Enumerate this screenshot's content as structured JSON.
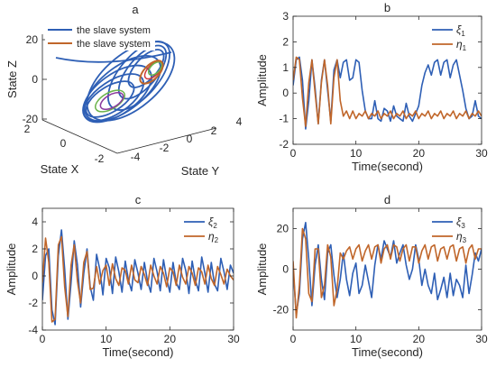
{
  "figure": {
    "panels": [
      "a",
      "b",
      "c",
      "d"
    ]
  },
  "chart_data": [
    {
      "panel": "a",
      "type": "line",
      "projection": "3d",
      "title": "a",
      "xlabel": "State X",
      "ylabel": "State Y",
      "zlabel": "State Z",
      "xticks": [
        "-2",
        "0",
        "2"
      ],
      "yticks": [
        "-4",
        "-2",
        "0",
        "2",
        "4"
      ],
      "zticks": [
        "-20",
        "0",
        "20"
      ],
      "xlim": [
        -2,
        2
      ],
      "ylim": [
        -4,
        4
      ],
      "zlim": [
        -20,
        20
      ],
      "legend": [
        "the slave system",
        "the slave system"
      ],
      "legend_position": "top-left",
      "series": [
        {
          "name": "the slave system",
          "color": "#2e5fb5",
          "trajectory": "double-scroll attractor"
        },
        {
          "name": "the slave system",
          "color": "#c0662a",
          "trajectory": "small loop"
        },
        {
          "color": "#6bb34a"
        },
        {
          "color": "#8b3a9e"
        },
        {
          "color": "#d03a3a"
        }
      ]
    },
    {
      "panel": "b",
      "type": "line",
      "title": "b",
      "xlabel": "Time(second)",
      "ylabel": "Amplitude",
      "xlim": [
        0,
        30
      ],
      "ylim": [
        -2,
        3
      ],
      "xticks": [
        0,
        10,
        20,
        30
      ],
      "yticks": [
        -2,
        -1,
        0,
        1,
        2,
        3
      ],
      "legend_position": "top-right",
      "series": [
        {
          "name": "ξ",
          "sub": "1",
          "color": "#2e5fb5",
          "x": [
            0,
            0.5,
            1,
            1.5,
            2,
            2.5,
            3,
            3.5,
            4,
            4.5,
            5,
            5.5,
            6,
            6.5,
            7,
            7.5,
            8,
            8.5,
            9,
            9.5,
            10,
            10.5,
            11,
            11.5,
            12,
            12.5,
            13,
            13.5,
            14,
            14.5,
            15,
            15.5,
            16,
            16.5,
            17,
            17.5,
            18,
            18.5,
            19,
            19.5,
            20,
            20.5,
            21,
            21.5,
            22,
            22.5,
            23,
            23.5,
            24,
            24.5,
            25,
            25.5,
            26,
            26.5,
            27,
            27.5,
            28,
            28.5,
            29,
            29.5,
            30
          ],
          "y": [
            0.3,
            1.3,
            1.4,
            0.5,
            -1.4,
            -0.3,
            1.3,
            0.2,
            -1.2,
            0.5,
            1.3,
            0.1,
            -1.1,
            0.9,
            1.3,
            0.6,
            1.2,
            1.3,
            0.5,
            0.6,
            1.3,
            1.2,
            0.1,
            -0.7,
            -1.0,
            -1.0,
            -0.3,
            -1.0,
            -1.1,
            -0.6,
            -0.7,
            -1.1,
            -0.5,
            -0.9,
            -1.0,
            -1.1,
            -0.4,
            -0.9,
            -1.1,
            -0.8,
            -0.5,
            0.3,
            0.8,
            1.1,
            0.7,
            1.2,
            1.3,
            0.7,
            1.2,
            1.3,
            0.6,
            1.1,
            1.3,
            0.7,
            0.1,
            -0.6,
            -1.0,
            -0.9,
            -0.3,
            -0.9,
            -1.0
          ]
        },
        {
          "name": "η",
          "sub": "1",
          "color": "#c0662a",
          "x": [
            0,
            0.5,
            1,
            1.5,
            2,
            2.5,
            3,
            3.5,
            4,
            4.5,
            5,
            5.5,
            6,
            6.5,
            7,
            7.5,
            8,
            8.5,
            9,
            9.5,
            10,
            10.5,
            11,
            11.5,
            12,
            12.5,
            13,
            13.5,
            14,
            14.5,
            15,
            15.5,
            16,
            16.5,
            17,
            17.5,
            18,
            18.5,
            19,
            19.5,
            20,
            20.5,
            21,
            21.5,
            22,
            22.5,
            23,
            23.5,
            24,
            24.5,
            25,
            25.5,
            26,
            26.5,
            27,
            27.5,
            28,
            28.5,
            29,
            29.5,
            30
          ],
          "y": [
            0.5,
            1.4,
            1.3,
            -0.2,
            -1.3,
            0.4,
            1.3,
            0.0,
            -1.2,
            0.4,
            1.3,
            0.3,
            -1.2,
            0.6,
            1.3,
            -0.3,
            -0.9,
            -0.7,
            -1.0,
            -0.7,
            -1.0,
            -0.8,
            -0.9,
            -0.7,
            -1.0,
            -0.8,
            -0.9,
            -0.7,
            -1.0,
            -0.8,
            -0.9,
            -0.7,
            -1.0,
            -0.8,
            -0.9,
            -0.7,
            -1.0,
            -0.8,
            -0.9,
            -0.7,
            -1.0,
            -0.8,
            -0.9,
            -0.7,
            -1.0,
            -0.8,
            -0.9,
            -0.7,
            -1.0,
            -0.8,
            -0.9,
            -0.7,
            -1.0,
            -0.8,
            -0.9,
            -0.7,
            -1.0,
            -0.8,
            -0.9,
            -0.7,
            -0.9
          ]
        }
      ]
    },
    {
      "panel": "c",
      "type": "line",
      "title": "c",
      "xlabel": "Time(second)",
      "ylabel": "Amplitude",
      "xlim": [
        0,
        30
      ],
      "ylim": [
        -4,
        5
      ],
      "xticks": [
        0,
        10,
        20,
        30
      ],
      "yticks": [
        -4,
        -2,
        0,
        2,
        4
      ],
      "legend_position": "top-right",
      "series": [
        {
          "name": "ξ",
          "sub": "2",
          "color": "#2e5fb5",
          "x": [
            0,
            0.5,
            1,
            1.5,
            2,
            2.5,
            3,
            3.5,
            4,
            4.5,
            5,
            5.5,
            6,
            6.5,
            7,
            7.5,
            8,
            8.5,
            9,
            9.5,
            10,
            10.5,
            11,
            11.5,
            12,
            12.5,
            13,
            13.5,
            14,
            14.5,
            15,
            15.5,
            16,
            16.5,
            17,
            17.5,
            18,
            18.5,
            19,
            19.5,
            20,
            20.5,
            21,
            21.5,
            22,
            22.5,
            23,
            23.5,
            24,
            24.5,
            25,
            25.5,
            26,
            26.5,
            27,
            27.5,
            28,
            28.5,
            29,
            29.5,
            30
          ],
          "y": [
            -1.8,
            1.5,
            2.0,
            -2.5,
            -3.6,
            1.5,
            3.4,
            0.5,
            -3.2,
            -0.5,
            2.6,
            0.8,
            -2.3,
            0.2,
            2.0,
            -0.8,
            -1.8,
            1.6,
            0.5,
            -1.4,
            1.3,
            0.6,
            -1.3,
            1.4,
            0.3,
            -1.2,
            1.1,
            -0.3,
            -1.1,
            1.2,
            0.2,
            -1.0,
            1.0,
            -0.4,
            -1.2,
            1.3,
            0.3,
            -1.1,
            1.2,
            -0.2,
            -1.2,
            1.0,
            -0.5,
            -1.0,
            1.3,
            0.4,
            -1.3,
            1.1,
            -0.3,
            -1.1,
            1.4,
            0.2,
            -1.2,
            1.0,
            -0.6,
            -1.1,
            1.3,
            0.3,
            -1.0,
            0.8,
            0.2
          ]
        },
        {
          "name": "η",
          "sub": "2",
          "color": "#c0662a",
          "x": [
            0,
            0.5,
            1,
            1.5,
            2,
            2.5,
            3,
            3.5,
            4,
            4.5,
            5,
            5.5,
            6,
            6.5,
            7,
            7.5,
            8,
            8.5,
            9,
            9.5,
            10,
            10.5,
            11,
            11.5,
            12,
            12.5,
            13,
            13.5,
            14,
            14.5,
            15,
            15.5,
            16,
            16.5,
            17,
            17.5,
            18,
            18.5,
            19,
            19.5,
            20,
            20.5,
            21,
            21.5,
            22,
            22.5,
            23,
            23.5,
            24,
            24.5,
            25,
            25.5,
            26,
            26.5,
            27,
            27.5,
            28,
            28.5,
            29,
            29.5,
            30
          ],
          "y": [
            -0.5,
            2.8,
            1.0,
            -3.4,
            -3.2,
            2.3,
            2.9,
            -0.8,
            -3.0,
            0.8,
            2.3,
            -0.4,
            -2.0,
            1.0,
            1.8,
            -1.0,
            -0.9,
            0.7,
            -0.6,
            0.4,
            0.8,
            -0.7,
            0.9,
            -0.2,
            -0.7,
            0.6,
            0.4,
            -0.6,
            0.8,
            -0.3,
            -0.5,
            0.7,
            0.1,
            -0.7,
            0.8,
            0.0,
            -0.6,
            0.7,
            0.2,
            -0.8,
            0.6,
            0.3,
            -0.7,
            0.8,
            -0.1,
            -0.6,
            0.7,
            0.2,
            -0.7,
            0.6,
            0.3,
            -0.6,
            0.8,
            -0.2,
            -0.7,
            0.7,
            0.1,
            -0.6,
            0.5,
            0.0,
            -0.3
          ]
        }
      ]
    },
    {
      "panel": "d",
      "type": "line",
      "title": "d",
      "xlabel": "Time(second)",
      "ylabel": "Amplitude",
      "xlim": [
        0,
        30
      ],
      "ylim": [
        -30,
        30
      ],
      "xticks": [
        0,
        10,
        20,
        30
      ],
      "yticks": [
        -20,
        0,
        20
      ],
      "legend_position": "top-right",
      "series": [
        {
          "name": "ξ",
          "sub": "3",
          "color": "#2e5fb5",
          "x": [
            0,
            0.5,
            1,
            1.5,
            2,
            2.5,
            3,
            3.5,
            4,
            4.5,
            5,
            5.5,
            6,
            6.5,
            7,
            7.5,
            8,
            8.5,
            9,
            9.5,
            10,
            10.5,
            11,
            11.5,
            12,
            12.5,
            13,
            13.5,
            14,
            14.5,
            15,
            15.5,
            16,
            16.5,
            17,
            17.5,
            18,
            18.5,
            19,
            19.5,
            20,
            20.5,
            21,
            21.5,
            22,
            22.5,
            23,
            23.5,
            24,
            24.5,
            25,
            25.5,
            26,
            26.5,
            27,
            27.5,
            28,
            28.5,
            29,
            29.5,
            30
          ],
          "y": [
            0,
            -22,
            -12,
            15,
            23,
            5,
            -18,
            2,
            12,
            -5,
            -15,
            8,
            12,
            -3,
            -14,
            -5,
            8,
            -5,
            -13,
            -2,
            3,
            -12,
            -8,
            2,
            -6,
            -14,
            2,
            12,
            5,
            14,
            10,
            6,
            14,
            3,
            8,
            12,
            2,
            -5,
            0,
            12,
            5,
            -8,
            0,
            -8,
            -12,
            -2,
            -15,
            -10,
            -4,
            -14,
            -2,
            -13,
            -5,
            -8,
            -14,
            2,
            -12,
            -3,
            8,
            4,
            10
          ]
        },
        {
          "name": "η",
          "sub": "3",
          "color": "#c0662a",
          "x": [
            0,
            0.5,
            1,
            1.5,
            2,
            2.5,
            3,
            3.5,
            4,
            4.5,
            5,
            5.5,
            6,
            6.5,
            7,
            7.5,
            8,
            8.5,
            9,
            9.5,
            10,
            10.5,
            11,
            11.5,
            12,
            12.5,
            13,
            13.5,
            14,
            14.5,
            15,
            15.5,
            16,
            16.5,
            17,
            17.5,
            18,
            18.5,
            19,
            19.5,
            20,
            20.5,
            21,
            21.5,
            22,
            22.5,
            23,
            23.5,
            24,
            24.5,
            25,
            25.5,
            26,
            26.5,
            27,
            27.5,
            28,
            28.5,
            29,
            29.5,
            30
          ],
          "y": [
            4,
            -24,
            -8,
            20,
            15,
            -12,
            -16,
            10,
            10,
            -14,
            -8,
            12,
            6,
            -18,
            -10,
            8,
            5,
            9,
            11,
            5,
            10,
            12,
            4,
            9,
            12,
            5,
            11,
            12,
            3,
            10,
            12,
            5,
            12,
            11,
            4,
            10,
            12,
            4,
            11,
            11,
            3,
            9,
            12,
            5,
            11,
            12,
            4,
            10,
            11,
            5,
            11,
            12,
            4,
            10,
            11,
            3,
            10,
            12,
            5,
            10,
            10
          ]
        }
      ]
    }
  ]
}
